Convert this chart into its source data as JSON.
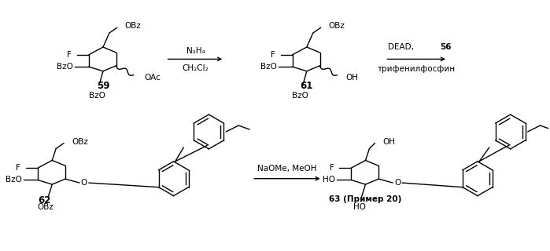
{
  "background_color": "#ffffff",
  "compounds": {
    "59_label": "59",
    "61_label": "61",
    "62_label": "62",
    "63_label": "63 (Пример 20)"
  },
  "arrow1_reagent_top": "N₂H₄",
  "arrow1_reagent_bot": "CH₂Cl₂",
  "arrow2_reagent_top": "DEAD, ",
  "arrow2_reagent_top_bold": "56",
  "arrow2_reagent_bot": "трифенилфосфин",
  "arrow3_reagent": "NaOMe, MeOH",
  "label_OBz": "OBz",
  "label_BzO": "BzO",
  "label_OAc": "OAc",
  "label_OH": "OH",
  "label_F": "F",
  "label_O": "O",
  "label_HO": "HO"
}
